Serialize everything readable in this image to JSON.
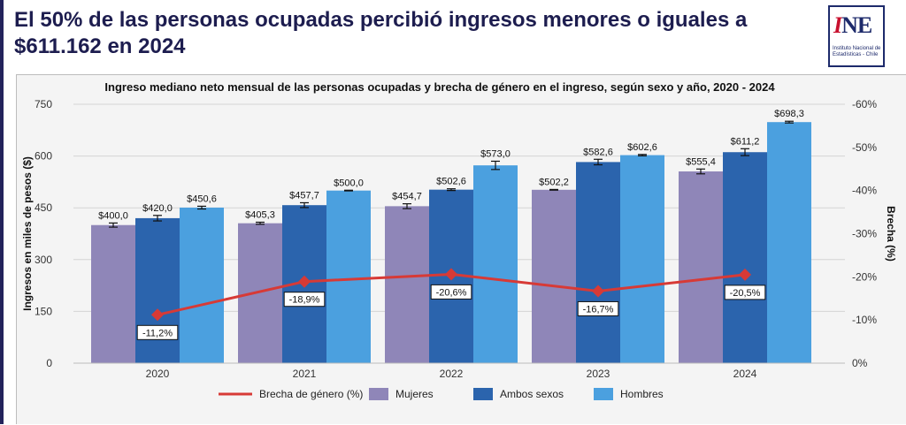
{
  "headline": "El 50% de las personas ocupadas percibió ingresos menores o iguales a $611.162 en 2024",
  "logo": {
    "mark_i": "I",
    "mark_ne": "NE",
    "caption": "Instituto Nacional de Estadísticas - Chile"
  },
  "colors": {
    "mujeres": "#8f86b8",
    "ambos": "#2b64ad",
    "hombres": "#4ba0df",
    "brecha": "#d73a36",
    "grid": "#d4d4d4"
  },
  "chart_data": {
    "type": "bar",
    "title": "Ingreso mediano neto mensual de las personas ocupadas y brecha de género en el ingreso, según sexo y año, 2020 - 2024",
    "ylabel": "Ingresos en miles de pesos ($)",
    "y2label": "Brecha (%)",
    "ylim": [
      0,
      750
    ],
    "yticks": [
      "0",
      "150",
      "300",
      "450",
      "600",
      "750"
    ],
    "y2lim": [
      0,
      -60
    ],
    "y2ticks": [
      "0%",
      "-10%",
      "-20%",
      "-30%",
      "-40%",
      "-50%",
      "-60%"
    ],
    "categories": [
      "2020",
      "2021",
      "2022",
      "2023",
      "2024"
    ],
    "series": [
      {
        "name": "Mujeres",
        "values": [
          400.0,
          405.3,
          454.7,
          502.2,
          555.4
        ],
        "labels": [
          "$400,0",
          "$405,3",
          "$454,7",
          "$502,2",
          "$555,4"
        ],
        "error": [
          12,
          6,
          14,
          2,
          14
        ]
      },
      {
        "name": "Ambos sexos",
        "values": [
          420.0,
          457.7,
          502.6,
          582.6,
          611.2
        ],
        "labels": [
          "$420,0",
          "$457,7",
          "$502,6",
          "$582,6",
          "$611,2"
        ],
        "error": [
          16,
          14,
          5,
          16,
          20
        ]
      },
      {
        "name": "Hombres",
        "values": [
          450.6,
          500.0,
          573.0,
          602.6,
          698.3
        ],
        "labels": [
          "$450,6",
          "$500,0",
          "$573,0",
          "$602,6",
          "$698,3"
        ],
        "error": [
          8,
          2,
          24,
          4,
          5
        ]
      }
    ],
    "gap_series": {
      "name": "Brecha de género (%)",
      "values": [
        -11.2,
        -18.9,
        -20.6,
        -16.7,
        -20.5
      ],
      "labels": [
        "-11,2%",
        "-18,9%",
        "-20,6%",
        "-16,7%",
        "-20,5%"
      ]
    },
    "legend": [
      "Brecha de género (%)",
      "Mujeres",
      "Ambos sexos",
      "Hombres"
    ],
    "legend_position": "bottom",
    "grid": true
  }
}
